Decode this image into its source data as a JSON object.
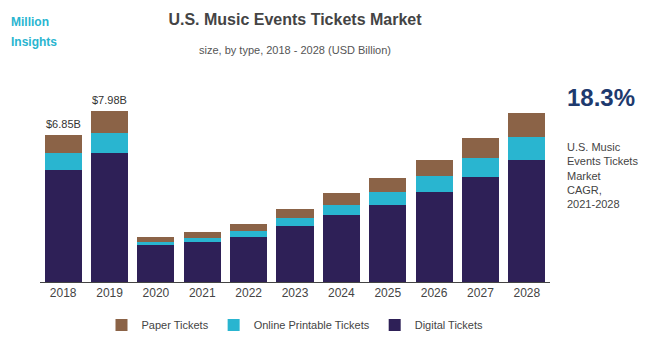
{
  "chart_data": {
    "type": "bar",
    "stacked": true,
    "title": "U.S. Music Events Tickets Market",
    "subtitle": "size, by type, 2018 - 2028 (USD Billion)",
    "categories": [
      "2018",
      "2019",
      "2020",
      "2021",
      "2022",
      "2023",
      "2024",
      "2025",
      "2026",
      "2027",
      "2028"
    ],
    "series": [
      {
        "name": "Digital Tickets",
        "color": "#2E2057",
        "values": [
          5.2,
          6.0,
          1.7,
          1.85,
          2.1,
          2.6,
          3.1,
          3.6,
          4.2,
          4.9,
          5.7
        ]
      },
      {
        "name": "Online Printable Tickets",
        "color": "#29B5D0",
        "values": [
          0.8,
          0.95,
          0.18,
          0.22,
          0.28,
          0.38,
          0.48,
          0.58,
          0.72,
          0.88,
          1.05
        ]
      },
      {
        "name": "Paper Tickets",
        "color": "#8B6347",
        "values": [
          0.85,
          1.03,
          0.22,
          0.27,
          0.32,
          0.42,
          0.55,
          0.65,
          0.78,
          0.92,
          1.1
        ]
      }
    ],
    "ylim": [
      0,
      9.5
    ],
    "tick_labels": "x",
    "grid": false,
    "legend": "bottom",
    "annotations": [
      {
        "category": "2018",
        "value": 6.85,
        "text": "$6.85B"
      },
      {
        "category": "2019",
        "value": 7.98,
        "text": "$7.98B"
      },
      {
        "text": "18.3%"
      },
      {
        "text": "U.S. Music\nEvents Tickets\nMarket\nCAGR,\n2021-2028"
      },
      {
        "text": "Million"
      },
      {
        "text": "Insights"
      }
    ]
  }
}
